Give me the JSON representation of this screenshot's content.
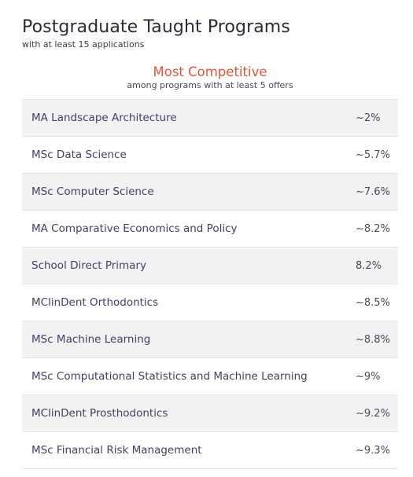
{
  "header": {
    "title": "Postgraduate Taught Programs",
    "subtitle": "with at least 15 applications"
  },
  "section": {
    "title": "Most Competitive",
    "subtitle": "among programs with at least 5 offers"
  },
  "rows": [
    {
      "name": "MA Landscape Architecture",
      "rate": "~2%"
    },
    {
      "name": "MSc Data Science",
      "rate": "~5.7%"
    },
    {
      "name": "MSc Computer Science",
      "rate": "~7.6%"
    },
    {
      "name": "MA Comparative Economics and Policy",
      "rate": "~8.2%"
    },
    {
      "name": "School Direct Primary",
      "rate": "8.2%"
    },
    {
      "name": "MClinDent Orthodontics",
      "rate": "~8.5%"
    },
    {
      "name": "MSc Machine Learning",
      "rate": "~8.8%"
    },
    {
      "name": "MSc Computational Statistics and Machine Learning",
      "rate": "~9%"
    },
    {
      "name": "MClinDent Prosthodontics",
      "rate": "~9.2%"
    },
    {
      "name": "MSc Financial Risk Management",
      "rate": "~9.3%"
    }
  ]
}
